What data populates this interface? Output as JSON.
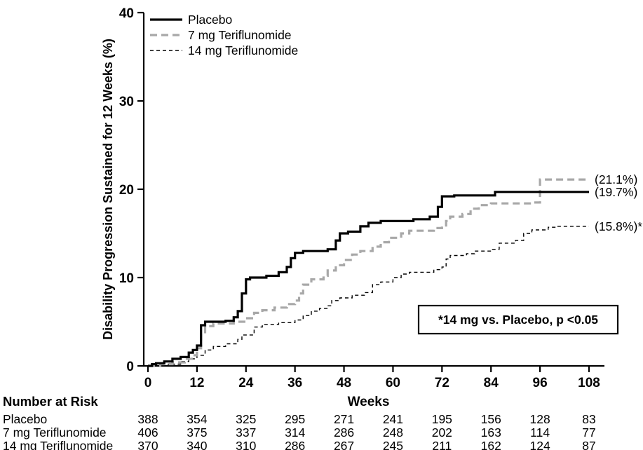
{
  "chart_data": {
    "type": "line",
    "subtype": "kaplan-meier-step",
    "title": "",
    "xlabel": "Weeks",
    "ylabel": "Disability Progression Sustained for 12 Weeks (%)",
    "xlim": [
      0,
      108
    ],
    "ylim": [
      0,
      40
    ],
    "xticks": [
      0,
      12,
      24,
      36,
      48,
      60,
      72,
      84,
      96,
      108
    ],
    "yticks": [
      0,
      10,
      20,
      30,
      40
    ],
    "grid": false,
    "legend_position": "top-left",
    "colors": {
      "black": "#000000",
      "gray": "#a8a8a8",
      "background": "#ffffff"
    },
    "annotation": "*14 mg vs. Placebo, p <0.05",
    "series": [
      {
        "name": "14 mg Teriflunomide",
        "color": "#000000",
        "width": 1.4,
        "dash": "5 4",
        "end_label": "(15.8%)*",
        "end_value": 15.8,
        "points": [
          [
            0,
            0
          ],
          [
            5,
            0.2
          ],
          [
            8,
            0.5
          ],
          [
            10,
            0.8
          ],
          [
            12,
            1.2
          ],
          [
            14,
            1.8
          ],
          [
            16,
            2.2
          ],
          [
            19,
            2.5
          ],
          [
            22,
            3.0
          ],
          [
            23,
            3.5
          ],
          [
            26,
            4.4
          ],
          [
            28,
            4.7
          ],
          [
            32,
            4.9
          ],
          [
            36,
            5.2
          ],
          [
            38,
            5.7
          ],
          [
            40,
            6.2
          ],
          [
            42,
            6.5
          ],
          [
            44,
            6.8
          ],
          [
            45,
            7.4
          ],
          [
            47,
            7.7
          ],
          [
            50,
            8.0
          ],
          [
            53,
            8.3
          ],
          [
            55,
            9.2
          ],
          [
            57,
            9.5
          ],
          [
            60,
            10.0
          ],
          [
            62,
            10.4
          ],
          [
            64,
            10.6
          ],
          [
            70,
            10.9
          ],
          [
            72,
            11.2
          ],
          [
            73,
            12.1
          ],
          [
            74,
            12.5
          ],
          [
            78,
            12.7
          ],
          [
            80,
            13.0
          ],
          [
            84,
            13.2
          ],
          [
            86,
            13.9
          ],
          [
            90,
            14.2
          ],
          [
            92,
            15.0
          ],
          [
            94,
            15.4
          ],
          [
            98,
            15.7
          ],
          [
            100,
            15.8
          ],
          [
            108,
            15.8
          ]
        ]
      },
      {
        "name": "7 mg Teriflunomide",
        "color": "#a8a8a8",
        "width": 3.2,
        "dash": "10 6",
        "end_label": "(21.1%)",
        "end_value": 21.1,
        "points": [
          [
            0,
            0
          ],
          [
            3,
            0.2
          ],
          [
            6,
            0.4
          ],
          [
            9,
            0.8
          ],
          [
            11,
            1.2
          ],
          [
            12,
            2.0
          ],
          [
            13,
            3.6
          ],
          [
            14,
            4.5
          ],
          [
            16,
            4.8
          ],
          [
            21,
            5.0
          ],
          [
            24,
            5.4
          ],
          [
            26,
            6.0
          ],
          [
            28,
            6.3
          ],
          [
            31,
            6.6
          ],
          [
            34,
            7.0
          ],
          [
            36,
            7.4
          ],
          [
            37,
            8.2
          ],
          [
            38,
            9.2
          ],
          [
            40,
            9.8
          ],
          [
            43,
            10.2
          ],
          [
            44,
            10.8
          ],
          [
            46,
            11.4
          ],
          [
            48,
            12.0
          ],
          [
            50,
            12.6
          ],
          [
            52,
            13.0
          ],
          [
            55,
            13.5
          ],
          [
            57,
            14.0
          ],
          [
            59,
            14.5
          ],
          [
            62,
            15.0
          ],
          [
            64,
            15.3
          ],
          [
            70,
            15.6
          ],
          [
            72,
            15.9
          ],
          [
            73,
            16.4
          ],
          [
            74,
            16.9
          ],
          [
            77,
            17.2
          ],
          [
            79,
            17.8
          ],
          [
            81,
            18.2
          ],
          [
            84,
            18.4
          ],
          [
            94,
            18.5
          ],
          [
            96,
            21.1
          ],
          [
            108,
            21.1
          ]
        ]
      },
      {
        "name": "Placebo",
        "color": "#000000",
        "width": 3.2,
        "dash": "",
        "end_label": "(19.7%)",
        "end_value": 19.7,
        "points": [
          [
            0,
            0
          ],
          [
            1,
            0.2
          ],
          [
            2,
            0.3
          ],
          [
            4,
            0.5
          ],
          [
            6,
            0.8
          ],
          [
            8,
            1.0
          ],
          [
            10,
            1.5
          ],
          [
            11,
            1.8
          ],
          [
            12,
            2.3
          ],
          [
            13,
            4.6
          ],
          [
            14,
            5.0
          ],
          [
            19,
            5.1
          ],
          [
            21,
            5.5
          ],
          [
            22,
            6.2
          ],
          [
            23,
            8.2
          ],
          [
            24,
            9.8
          ],
          [
            25,
            10.0
          ],
          [
            29,
            10.2
          ],
          [
            32,
            10.6
          ],
          [
            34,
            11.2
          ],
          [
            35,
            12.2
          ],
          [
            36,
            12.8
          ],
          [
            38,
            13.0
          ],
          [
            44,
            13.2
          ],
          [
            46,
            14.2
          ],
          [
            47,
            15.0
          ],
          [
            49,
            15.2
          ],
          [
            52,
            15.8
          ],
          [
            54,
            16.2
          ],
          [
            57,
            16.4
          ],
          [
            65,
            16.6
          ],
          [
            69,
            16.9
          ],
          [
            71,
            18.0
          ],
          [
            72,
            19.2
          ],
          [
            75,
            19.3
          ],
          [
            85,
            19.7
          ],
          [
            108,
            19.7
          ]
        ]
      }
    ],
    "legend_order": [
      "Placebo",
      "7 mg Teriflunomide",
      "14 mg Teriflunomide"
    ]
  },
  "risk_table": {
    "title": "Number at Risk",
    "weeks": [
      0,
      12,
      24,
      36,
      48,
      60,
      72,
      84,
      96,
      108
    ],
    "rows": [
      {
        "label": "Placebo",
        "values": [
          388,
          354,
          325,
          295,
          271,
          241,
          195,
          156,
          128,
          83
        ]
      },
      {
        "label": "7 mg Teriflunomide",
        "values": [
          406,
          375,
          337,
          314,
          286,
          248,
          202,
          163,
          114,
          77
        ]
      },
      {
        "label": "14 mg Teriflunomide",
        "values": [
          370,
          340,
          310,
          286,
          267,
          245,
          211,
          162,
          124,
          87
        ]
      }
    ]
  }
}
